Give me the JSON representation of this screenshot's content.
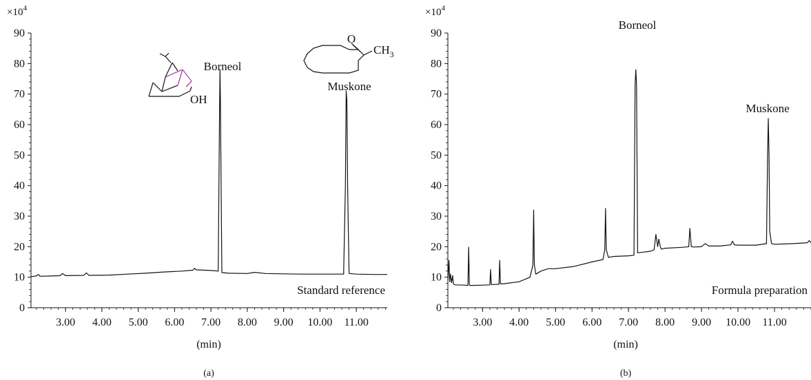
{
  "chart_data": [
    {
      "type": "line",
      "panel_label": "(a)",
      "scale_label": "×10",
      "scale_exp": "4",
      "xlabel": "(min)",
      "xlim": [
        2.05,
        11.85
      ],
      "ylim": [
        0,
        90
      ],
      "xticks": [
        "3.00",
        "4.00",
        "5.00",
        "6.00",
        "7.00",
        "8.00",
        "9.00",
        "10.00",
        "11.00"
      ],
      "yticks": [
        "0",
        "10",
        "20",
        "30",
        "40",
        "50",
        "60",
        "70",
        "80",
        "90"
      ],
      "annotations": [
        {
          "text": "Borneol",
          "x": 7.25,
          "y": 80
        },
        {
          "text": "Muskone",
          "x": 10.72,
          "y": 72
        },
        {
          "text": "Standard reference",
          "position": "bottom-right"
        }
      ],
      "structure_labels": {
        "oh": "OH",
        "ketone_o": "O",
        "methyl": "CH",
        "methyl_sub": "3"
      },
      "x": [
        2.05,
        2.2,
        2.25,
        2.3,
        2.6,
        2.85,
        2.92,
        3.0,
        3.5,
        3.57,
        3.65,
        4.2,
        4.7,
        5.2,
        5.7,
        6.2,
        6.5,
        6.55,
        6.6,
        7.0,
        7.2,
        7.22,
        7.24,
        7.25,
        7.26,
        7.28,
        7.3,
        7.5,
        8.0,
        8.2,
        8.5,
        9.0,
        9.5,
        10.0,
        10.5,
        10.65,
        10.7,
        10.72,
        10.74,
        10.76,
        10.8,
        11.0,
        11.5,
        11.85
      ],
      "series": [
        {
          "values": [
            10.2,
            10.4,
            10.9,
            10.3,
            10.4,
            10.5,
            11.2,
            10.5,
            10.6,
            11.4,
            10.6,
            10.7,
            11.0,
            11.3,
            11.7,
            12.0,
            12.3,
            12.9,
            12.4,
            12.2,
            12.0,
            40,
            68,
            78,
            68,
            40,
            11.5,
            11.3,
            11.2,
            11.6,
            11.2,
            11.1,
            11.0,
            11.0,
            11.0,
            11.0,
            40,
            71,
            68,
            40,
            11.2,
            11.0,
            10.9,
            10.9
          ]
        }
      ]
    },
    {
      "type": "line",
      "panel_label": "(b)",
      "scale_label": "×10",
      "scale_exp": "4",
      "xlabel": "(min)",
      "xlim": [
        2.05,
        12.0
      ],
      "ylim": [
        0,
        90
      ],
      "xticks": [
        "3.00",
        "4.00",
        "5.00",
        "6.00",
        "7.00",
        "8.00",
        "9.00",
        "10.00",
        "11.00"
      ],
      "yticks": [
        "0",
        "10",
        "20",
        "30",
        "40",
        "50",
        "60",
        "70",
        "80",
        "90"
      ],
      "annotations": [
        {
          "text": "Borneol",
          "x": 7.2,
          "y": 80
        },
        {
          "text": "Muskone",
          "x": 10.85,
          "y": 65
        },
        {
          "text": "Formula preparation",
          "position": "bottom-right"
        }
      ],
      "x": [
        2.05,
        2.08,
        2.1,
        2.12,
        2.15,
        2.18,
        2.2,
        2.25,
        2.5,
        2.6,
        2.62,
        2.64,
        2.66,
        2.7,
        3.0,
        3.2,
        3.22,
        3.24,
        3.3,
        3.45,
        3.47,
        3.49,
        3.55,
        4.0,
        4.3,
        4.38,
        4.4,
        4.42,
        4.46,
        4.6,
        4.8,
        5.0,
        5.5,
        6.0,
        6.3,
        6.35,
        6.37,
        6.39,
        6.45,
        6.6,
        7.0,
        7.15,
        7.18,
        7.2,
        7.22,
        7.25,
        7.4,
        7.6,
        7.7,
        7.75,
        7.8,
        7.83,
        7.87,
        7.9,
        8.0,
        8.5,
        8.65,
        8.68,
        8.72,
        8.8,
        9.0,
        9.1,
        9.2,
        9.5,
        9.8,
        9.85,
        9.9,
        10.0,
        10.5,
        10.78,
        10.81,
        10.83,
        10.85,
        10.87,
        10.92,
        11.0,
        11.5,
        11.9,
        11.95,
        12.0
      ],
      "series": [
        {
          "values": [
            9.0,
            15.5,
            8.5,
            11.0,
            8.2,
            10.5,
            7.8,
            7.5,
            7.4,
            7.3,
            19.8,
            7.5,
            7.3,
            7.3,
            7.4,
            7.5,
            12.5,
            7.6,
            7.6,
            7.7,
            15.5,
            7.8,
            7.8,
            8.5,
            10.0,
            14.0,
            32.0,
            14.0,
            11.0,
            12.0,
            12.8,
            12.8,
            13.5,
            15.0,
            15.8,
            19.0,
            32.5,
            19.0,
            16.5,
            16.8,
            17.0,
            17.2,
            73.0,
            78.0,
            73.0,
            18.0,
            18.2,
            18.5,
            19.0,
            24.0,
            20.0,
            22.5,
            20.0,
            19.2,
            19.5,
            19.8,
            20.0,
            26.0,
            20.0,
            19.9,
            20.0,
            21.0,
            20.2,
            20.2,
            20.6,
            21.8,
            20.6,
            20.5,
            20.5,
            21.0,
            50.0,
            62.0,
            50.0,
            25.0,
            21.0,
            20.8,
            21.0,
            21.3,
            22.0,
            21.3
          ]
        }
      ]
    }
  ]
}
